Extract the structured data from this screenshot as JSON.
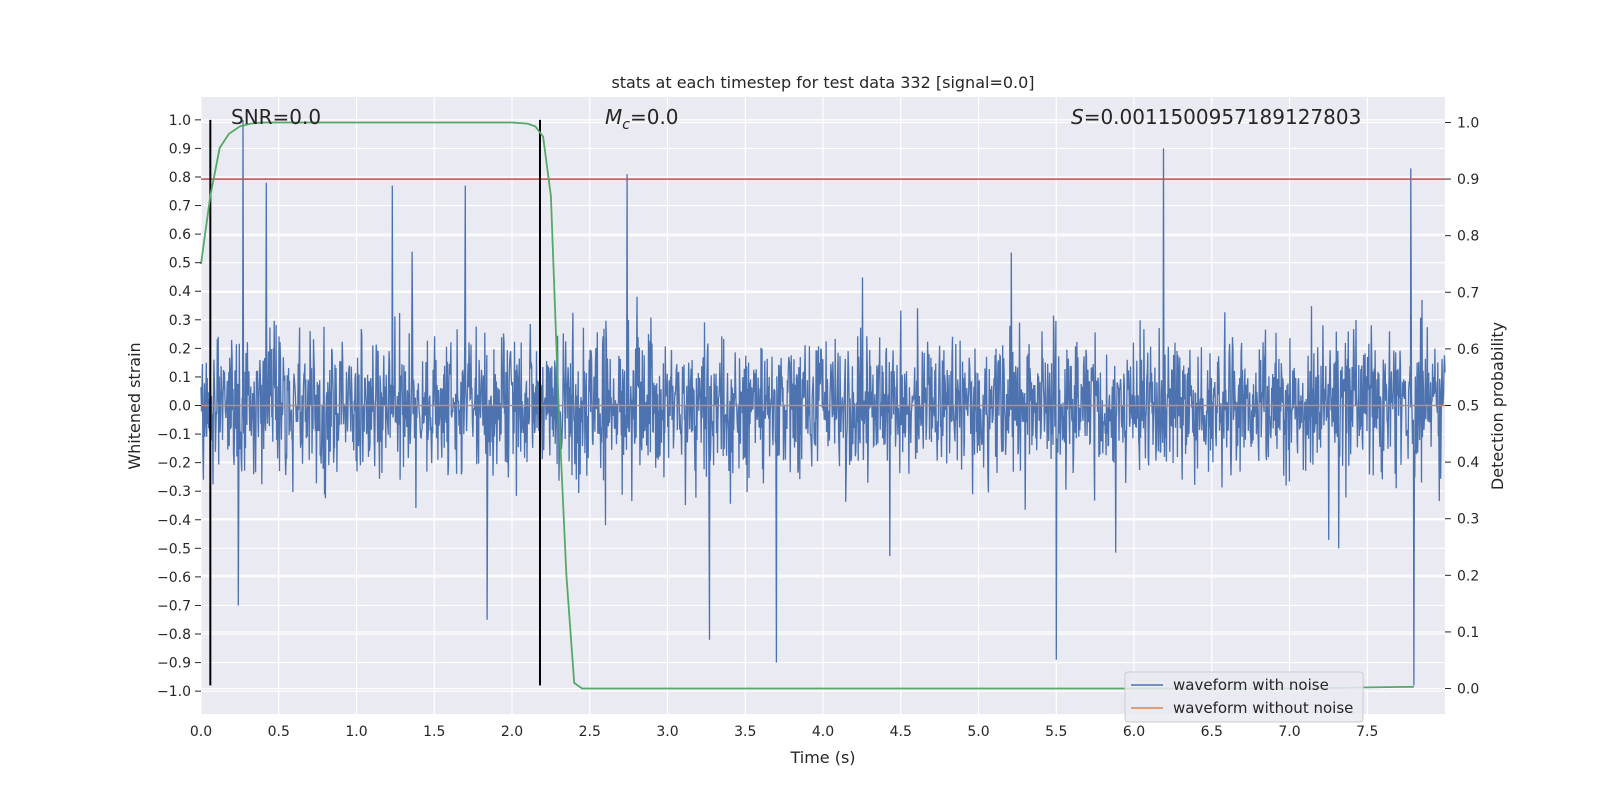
{
  "chart_data": {
    "type": "line",
    "title": "stats at each timestep for test data 332 [signal=0.0]",
    "xlabel": "Time (s)",
    "ylabel": "Whitened strain",
    "y2label": "Detection probability",
    "xlim": [
      0.0,
      8.0
    ],
    "ylim": [
      -1.08,
      1.08
    ],
    "y2lim": [
      -0.045,
      1.045
    ],
    "x_ticks": [
      0.0,
      0.5,
      1.0,
      1.5,
      2.0,
      2.5,
      3.0,
      3.5,
      4.0,
      4.5,
      5.0,
      5.5,
      6.0,
      6.5,
      7.0,
      7.5
    ],
    "x_tick_labels": [
      "0.0",
      "0.5",
      "1.0",
      "1.5",
      "2.0",
      "2.5",
      "3.0",
      "3.5",
      "4.0",
      "4.5",
      "5.0",
      "5.5",
      "6.0",
      "6.5",
      "7.0",
      "7.5"
    ],
    "y_ticks": [
      1.0,
      0.9,
      0.8,
      0.7,
      0.6,
      0.5,
      0.4,
      0.3,
      0.2,
      0.1,
      0.0,
      -0.1,
      -0.2,
      -0.3,
      -0.4,
      -0.5,
      -0.6,
      -0.7,
      -0.8,
      -0.9,
      -1.0
    ],
    "y_tick_labels": [
      "1.0",
      "0.9",
      "0.8",
      "0.7",
      "0.6",
      "0.5",
      "0.4",
      "0.3",
      "0.2",
      "0.1",
      "0.0",
      "−0.1",
      "−0.2",
      "−0.3",
      "−0.4",
      "−0.5",
      "−0.6",
      "−0.7",
      "−0.8",
      "−0.9",
      "−1.0"
    ],
    "y2_ticks": [
      1.0,
      0.9,
      0.8,
      0.7,
      0.6,
      0.5,
      0.4,
      0.3,
      0.2,
      0.1,
      0.0
    ],
    "y2_tick_labels": [
      "1.0",
      "0.9",
      "0.8",
      "0.7",
      "0.6",
      "0.5",
      "0.4",
      "0.3",
      "0.2",
      "0.1",
      "0.0"
    ],
    "annotations": {
      "snr": "SNR=0.0",
      "mc_symbol": "M",
      "mc_subscript": "c",
      "mc_value": "=0.0",
      "s_symbol": "S",
      "s_value": "=0.0011500957189127803"
    },
    "threshold": {
      "axis": "y2",
      "value": 0.9,
      "color": "#c44e52"
    },
    "vertical_markers": [
      {
        "x": 0.06,
        "y_from": -0.98,
        "y_to": 1.0,
        "color": "#000000"
      },
      {
        "x": 2.18,
        "y_from": -0.98,
        "y_to": 1.0,
        "color": "#000000"
      }
    ],
    "series": [
      {
        "name": "waveform with noise",
        "color": "#4c72b0",
        "axis": "y",
        "description_of_values": "dense noise samples sampled on 0-8 s, amplitude mostly within -0.45..0.45",
        "notable_peaks": [
          {
            "x": 0.27,
            "y": 1.0
          },
          {
            "x": 0.42,
            "y": 0.78
          },
          {
            "x": 1.23,
            "y": 0.77
          },
          {
            "x": 1.7,
            "y": 0.77
          },
          {
            "x": 2.74,
            "y": 0.81
          },
          {
            "x": 6.19,
            "y": 0.9
          },
          {
            "x": 7.78,
            "y": 0.83
          },
          {
            "x": 3.7,
            "y": -0.9
          },
          {
            "x": 5.5,
            "y": -0.89
          },
          {
            "x": 7.8,
            "y": -0.98
          },
          {
            "x": 0.24,
            "y": -0.7
          },
          {
            "x": 1.84,
            "y": -0.75
          },
          {
            "x": 3.27,
            "y": -0.82
          }
        ]
      },
      {
        "name": "waveform without noise",
        "color": "#dd8452",
        "axis": "y",
        "x": [
          0.0,
          8.0
        ],
        "values": [
          0.0,
          0.0
        ]
      },
      {
        "name": "detection probability",
        "color": "#55a868",
        "axis": "y2",
        "x": [
          0.0,
          0.06,
          0.12,
          0.18,
          0.25,
          0.32,
          0.4,
          0.5,
          1.0,
          1.5,
          2.0,
          2.1,
          2.15,
          2.2,
          2.25,
          2.3,
          2.35,
          2.4,
          2.45,
          2.6,
          3.0,
          5.0,
          7.0,
          7.8
        ],
        "values": [
          0.75,
          0.87,
          0.955,
          0.98,
          0.993,
          0.998,
          1.0,
          1.0,
          1.0,
          1.0,
          1.0,
          0.998,
          0.993,
          0.975,
          0.87,
          0.5,
          0.2,
          0.01,
          0.0,
          0.0,
          0.0,
          0.0,
          0.0,
          0.003
        ]
      }
    ],
    "legend": {
      "location": "lower-right",
      "entries": [
        {
          "label": "waveform with noise",
          "color": "#4c72b0"
        },
        {
          "label": "waveform without noise",
          "color": "#dd8452"
        }
      ]
    }
  }
}
